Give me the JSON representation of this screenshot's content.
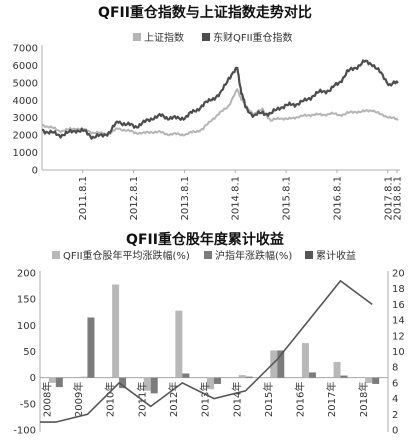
{
  "chart_data": [
    {
      "type": "line",
      "title": "QFII重仓指数与上证指数走势对比",
      "legend_position": "top-right",
      "legend": [
        "上证指数",
        "东财QFII重仓指数"
      ],
      "ylim": [
        0,
        7000
      ],
      "yticks": [
        "0",
        "1000",
        "2000",
        "3000",
        "4000",
        "5000",
        "6000",
        "7000"
      ],
      "xticks": [
        "2011.8.1",
        "2012.8.1",
        "2013.8.1",
        "2014.8.1",
        "2015.8.1",
        "2016.8.1",
        "2017.8.1",
        "2018.8.1"
      ],
      "grid": false,
      "colors": {
        "shanghai": "#b5b5b5",
        "qfii": "#4d4d4d"
      },
      "series": [
        {
          "name": "上证指数",
          "key": "shanghai",
          "x": [
            2011.58,
            2011.75,
            2011.92,
            2012.08,
            2012.25,
            2012.42,
            2012.58,
            2012.75,
            2012.92,
            2013.08,
            2013.25,
            2013.42,
            2013.58,
            2013.75,
            2013.92,
            2014.08,
            2014.25,
            2014.42,
            2014.58,
            2014.75,
            2014.92,
            2015.08,
            2015.25,
            2015.42,
            2015.5,
            2015.58,
            2015.75,
            2015.92,
            2016.08,
            2016.25,
            2016.42,
            2016.58,
            2016.75,
            2016.92,
            2017.08,
            2017.25,
            2017.42,
            2017.58,
            2017.75,
            2017.92,
            2018.08,
            2018.25,
            2018.42,
            2018.58
          ],
          "y": [
            2600,
            2450,
            2250,
            2300,
            2400,
            2300,
            2150,
            2100,
            2100,
            2400,
            2250,
            2150,
            2100,
            2200,
            2150,
            2050,
            2050,
            2050,
            2200,
            2350,
            2900,
            3250,
            3700,
            4600,
            4100,
            3700,
            3200,
            3500,
            2800,
            3000,
            2900,
            3050,
            3100,
            3200,
            3150,
            3250,
            3150,
            3250,
            3350,
            3350,
            3450,
            3150,
            3050,
            2850
          ]
        },
        {
          "name": "东财QFII重仓指数",
          "key": "qfii",
          "x": [
            2011.58,
            2011.75,
            2011.92,
            2012.08,
            2012.25,
            2012.42,
            2012.58,
            2012.75,
            2012.92,
            2013.08,
            2013.25,
            2013.42,
            2013.58,
            2013.75,
            2013.92,
            2014.08,
            2014.25,
            2014.42,
            2014.58,
            2014.75,
            2014.92,
            2015.08,
            2015.25,
            2015.42,
            2015.5,
            2015.58,
            2015.75,
            2015.92,
            2016.08,
            2016.25,
            2016.42,
            2016.58,
            2016.75,
            2016.92,
            2017.08,
            2017.25,
            2017.42,
            2017.58,
            2017.75,
            2017.92,
            2018.08,
            2018.25,
            2018.42,
            2018.58
          ],
          "y": [
            2300,
            2150,
            2000,
            2100,
            2300,
            2200,
            1900,
            1950,
            2200,
            2800,
            2600,
            2500,
            2700,
            3000,
            3100,
            3000,
            2950,
            3050,
            3400,
            3700,
            4100,
            4300,
            5300,
            5800,
            4500,
            3600,
            3100,
            3300,
            3200,
            3600,
            3700,
            3800,
            3950,
            4300,
            4500,
            4600,
            5000,
            5600,
            5900,
            6200,
            6100,
            5500,
            4900,
            5000
          ]
        }
      ]
    },
    {
      "type": "bar",
      "title": "QFII重仓股年度累计收益",
      "legend_position": "top",
      "legend": [
        "QFII重仓股年平均涨跌幅(%)",
        "沪指年涨跌幅(%)",
        "累计收益"
      ],
      "categories": [
        "2008年",
        "2009年",
        "2010年",
        "2011年",
        "2012年",
        "2013年",
        "2014年",
        "2015年",
        "2016年",
        "2017年",
        "2018年"
      ],
      "ylim": [
        -100,
        200
      ],
      "yticks": [
        "-100",
        "-50",
        "0",
        "50",
        "100",
        "150",
        "200"
      ],
      "y2lim": [
        0,
        20
      ],
      "y2ticks": [
        "0",
        "2",
        "4",
        "6",
        "8",
        "10",
        "12",
        "14",
        "16",
        "18",
        "20"
      ],
      "grid": false,
      "colors": {
        "qfii_bar": "#b8b8b8",
        "index_bar": "#7c7c7c",
        "cum_line": "#555555"
      },
      "series": [
        {
          "name": "QFII重仓股年平均涨跌幅(%)",
          "key": "qfii_bar",
          "axis": "left",
          "values": [
            -10,
            2,
            178,
            -25,
            128,
            -22,
            5,
            52,
            66,
            30,
            -10
          ]
        },
        {
          "name": "沪指年涨跌幅(%)",
          "key": "index_bar",
          "axis": "left",
          "values": [
            -18,
            115,
            -20,
            -30,
            8,
            -12,
            2,
            52,
            10,
            4,
            -12
          ]
        },
        {
          "name": "累计收益",
          "key": "cum_line",
          "axis": "right",
          "type": "line",
          "values": [
            1,
            2,
            6,
            3,
            6,
            4,
            5,
            9,
            14,
            19,
            16
          ]
        }
      ]
    }
  ]
}
